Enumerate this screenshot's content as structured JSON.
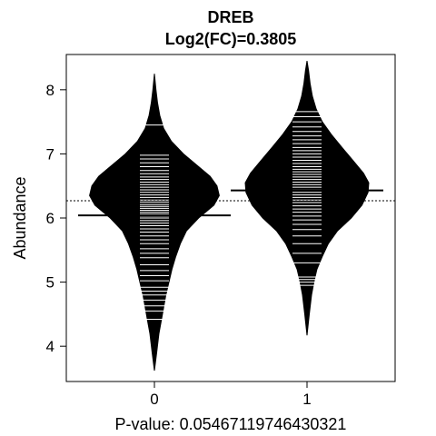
{
  "chart_data": {
    "type": "beanplot",
    "title": "DREB",
    "subtitle": "Log2(FC)=0.3805",
    "xlabel": "P-value: 0.05467119746430321",
    "ylabel": "Abundance",
    "categories": [
      "0",
      "1"
    ],
    "y_ticks": [
      "4",
      "5",
      "6",
      "7",
      "8"
    ],
    "ylim": [
      3.45,
      8.55
    ],
    "overall_mean": 6.27,
    "groups": [
      {
        "name": "0",
        "mean": 6.04,
        "min": 3.62,
        "max": 8.25,
        "density": [
          [
            3.62,
            0.0
          ],
          [
            3.9,
            0.03
          ],
          [
            4.2,
            0.06
          ],
          [
            4.4,
            0.09
          ],
          [
            4.6,
            0.12
          ],
          [
            4.8,
            0.15
          ],
          [
            5.0,
            0.19
          ],
          [
            5.2,
            0.23
          ],
          [
            5.4,
            0.28
          ],
          [
            5.6,
            0.34
          ],
          [
            5.8,
            0.42
          ],
          [
            6.0,
            0.58
          ],
          [
            6.2,
            0.78
          ],
          [
            6.35,
            0.85
          ],
          [
            6.5,
            0.82
          ],
          [
            6.65,
            0.73
          ],
          [
            6.8,
            0.58
          ],
          [
            7.0,
            0.38
          ],
          [
            7.2,
            0.22
          ],
          [
            7.4,
            0.12
          ],
          [
            7.6,
            0.07
          ],
          [
            7.8,
            0.04
          ],
          [
            8.0,
            0.02
          ],
          [
            8.25,
            0.0
          ]
        ],
        "observations": [
          4.42,
          4.55,
          4.63,
          4.72,
          4.8,
          4.86,
          4.92,
          5.02,
          5.1,
          5.18,
          5.27,
          5.38,
          5.45,
          5.52,
          5.6,
          5.66,
          5.72,
          5.78,
          5.83,
          5.88,
          5.92,
          5.96,
          6.0,
          6.03,
          6.06,
          6.09,
          6.12,
          6.15,
          6.18,
          6.21,
          6.25,
          6.28,
          6.32,
          6.36,
          6.4,
          6.44,
          6.48,
          6.52,
          6.56,
          6.6,
          6.64,
          6.69,
          6.74,
          6.8,
          6.86,
          6.92,
          6.98,
          7.45
        ]
      },
      {
        "name": "1",
        "mean": 6.43,
        "min": 4.17,
        "max": 8.45,
        "density": [
          [
            4.17,
            0.0
          ],
          [
            4.5,
            0.03
          ],
          [
            4.8,
            0.06
          ],
          [
            5.0,
            0.09
          ],
          [
            5.2,
            0.13
          ],
          [
            5.4,
            0.2
          ],
          [
            5.6,
            0.28
          ],
          [
            5.8,
            0.4
          ],
          [
            6.0,
            0.58
          ],
          [
            6.2,
            0.72
          ],
          [
            6.4,
            0.8
          ],
          [
            6.55,
            0.81
          ],
          [
            6.7,
            0.74
          ],
          [
            6.9,
            0.6
          ],
          [
            7.1,
            0.46
          ],
          [
            7.3,
            0.32
          ],
          [
            7.5,
            0.2
          ],
          [
            7.7,
            0.12
          ],
          [
            7.9,
            0.07
          ],
          [
            8.1,
            0.04
          ],
          [
            8.3,
            0.02
          ],
          [
            8.45,
            0.0
          ]
        ],
        "observations": [
          4.95,
          5.0,
          5.04,
          5.08,
          5.3,
          5.45,
          5.6,
          5.72,
          5.82,
          5.9,
          5.97,
          6.03,
          6.09,
          6.14,
          6.19,
          6.24,
          6.28,
          6.32,
          6.36,
          6.4,
          6.44,
          6.48,
          6.52,
          6.56,
          6.6,
          6.64,
          6.68,
          6.72,
          6.76,
          6.8,
          6.85,
          6.9,
          6.95,
          7.0,
          7.05,
          7.1,
          7.16,
          7.22,
          7.28,
          7.35,
          7.42,
          7.5,
          7.58,
          7.66
        ]
      }
    ]
  }
}
